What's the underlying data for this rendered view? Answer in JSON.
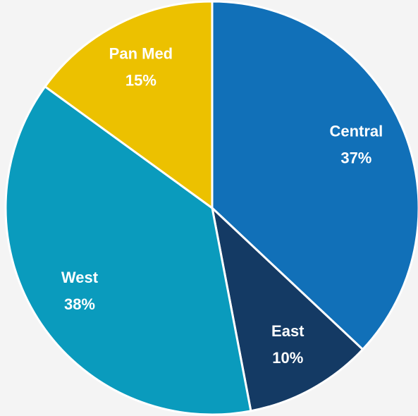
{
  "chart_data": {
    "type": "pie",
    "categories": [
      "Central",
      "East",
      "West",
      "Pan Med"
    ],
    "values": [
      37,
      10,
      38,
      15
    ],
    "value_labels": [
      "37%",
      "10%",
      "38%",
      "15%"
    ],
    "colors": [
      "#1170b8",
      "#143a64",
      "#0a9bbd",
      "#ecc100"
    ]
  }
}
